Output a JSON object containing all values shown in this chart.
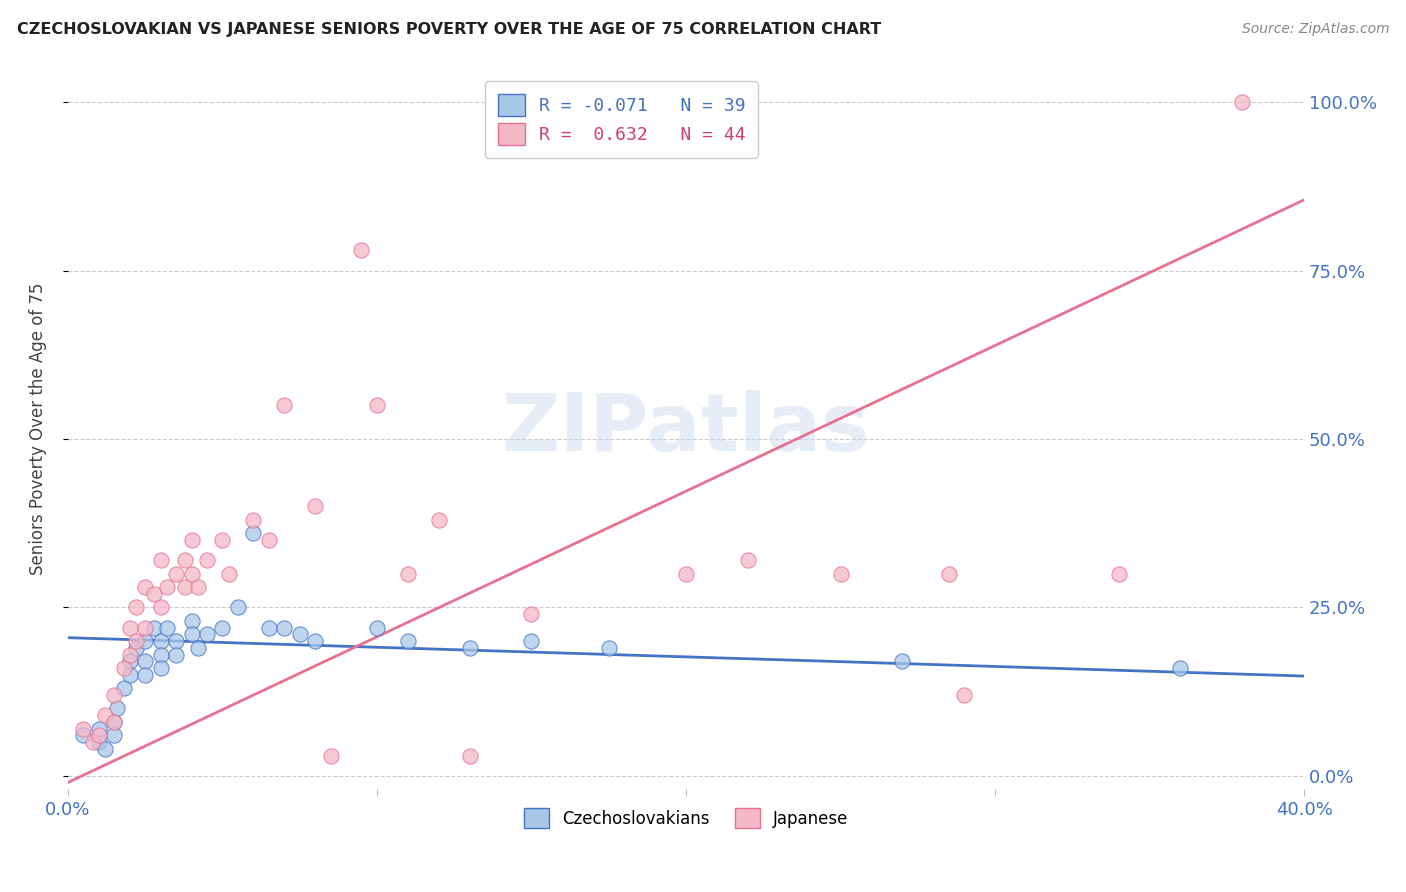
{
  "title": "CZECHOSLOVAKIAN VS JAPANESE SENIORS POVERTY OVER THE AGE OF 75 CORRELATION CHART",
  "source": "Source: ZipAtlas.com",
  "ylabel": "Seniors Poverty Over the Age of 75",
  "xlim": [
    0.0,
    0.4
  ],
  "ylim": [
    -0.02,
    1.05
  ],
  "yticks": [
    0.0,
    0.25,
    0.5,
    0.75,
    1.0
  ],
  "ytick_labels": [
    "0.0%",
    "25.0%",
    "50.0%",
    "75.0%",
    "100.0%"
  ],
  "xticks": [
    0.0,
    0.1,
    0.2,
    0.3,
    0.4
  ],
  "xtick_labels": [
    "0.0%",
    "",
    "",
    "",
    "40.0%"
  ],
  "watermark": "ZIPatlas",
  "blue_color": "#A8C8E8",
  "pink_color": "#F4B8C8",
  "blue_line_color": "#4472C4",
  "pink_line_color": "#E87090",
  "R_blue": -0.071,
  "N_blue": 39,
  "R_pink": 0.632,
  "N_pink": 44,
  "blue_points": [
    [
      0.005,
      0.06
    ],
    [
      0.01,
      0.05
    ],
    [
      0.01,
      0.07
    ],
    [
      0.012,
      0.04
    ],
    [
      0.015,
      0.08
    ],
    [
      0.015,
      0.06
    ],
    [
      0.016,
      0.1
    ],
    [
      0.018,
      0.13
    ],
    [
      0.02,
      0.17
    ],
    [
      0.02,
      0.15
    ],
    [
      0.022,
      0.19
    ],
    [
      0.025,
      0.2
    ],
    [
      0.025,
      0.17
    ],
    [
      0.025,
      0.15
    ],
    [
      0.028,
      0.22
    ],
    [
      0.03,
      0.2
    ],
    [
      0.03,
      0.18
    ],
    [
      0.03,
      0.16
    ],
    [
      0.032,
      0.22
    ],
    [
      0.035,
      0.2
    ],
    [
      0.035,
      0.18
    ],
    [
      0.04,
      0.23
    ],
    [
      0.04,
      0.21
    ],
    [
      0.042,
      0.19
    ],
    [
      0.045,
      0.21
    ],
    [
      0.05,
      0.22
    ],
    [
      0.055,
      0.25
    ],
    [
      0.06,
      0.36
    ],
    [
      0.065,
      0.22
    ],
    [
      0.07,
      0.22
    ],
    [
      0.075,
      0.21
    ],
    [
      0.08,
      0.2
    ],
    [
      0.1,
      0.22
    ],
    [
      0.11,
      0.2
    ],
    [
      0.13,
      0.19
    ],
    [
      0.15,
      0.2
    ],
    [
      0.175,
      0.19
    ],
    [
      0.27,
      0.17
    ],
    [
      0.36,
      0.16
    ]
  ],
  "pink_points": [
    [
      0.005,
      0.07
    ],
    [
      0.008,
      0.05
    ],
    [
      0.01,
      0.06
    ],
    [
      0.012,
      0.09
    ],
    [
      0.015,
      0.12
    ],
    [
      0.015,
      0.08
    ],
    [
      0.018,
      0.16
    ],
    [
      0.02,
      0.22
    ],
    [
      0.02,
      0.18
    ],
    [
      0.022,
      0.25
    ],
    [
      0.022,
      0.2
    ],
    [
      0.025,
      0.28
    ],
    [
      0.025,
      0.22
    ],
    [
      0.028,
      0.27
    ],
    [
      0.03,
      0.32
    ],
    [
      0.03,
      0.25
    ],
    [
      0.032,
      0.28
    ],
    [
      0.035,
      0.3
    ],
    [
      0.038,
      0.32
    ],
    [
      0.038,
      0.28
    ],
    [
      0.04,
      0.35
    ],
    [
      0.04,
      0.3
    ],
    [
      0.042,
      0.28
    ],
    [
      0.045,
      0.32
    ],
    [
      0.05,
      0.35
    ],
    [
      0.052,
      0.3
    ],
    [
      0.06,
      0.38
    ],
    [
      0.065,
      0.35
    ],
    [
      0.07,
      0.55
    ],
    [
      0.08,
      0.4
    ],
    [
      0.085,
      0.03
    ],
    [
      0.095,
      0.78
    ],
    [
      0.1,
      0.55
    ],
    [
      0.11,
      0.3
    ],
    [
      0.12,
      0.38
    ],
    [
      0.13,
      0.03
    ],
    [
      0.15,
      0.24
    ],
    [
      0.2,
      0.3
    ],
    [
      0.22,
      0.32
    ],
    [
      0.25,
      0.3
    ],
    [
      0.285,
      0.3
    ],
    [
      0.29,
      0.12
    ],
    [
      0.34,
      0.3
    ],
    [
      0.38,
      1.0
    ]
  ]
}
